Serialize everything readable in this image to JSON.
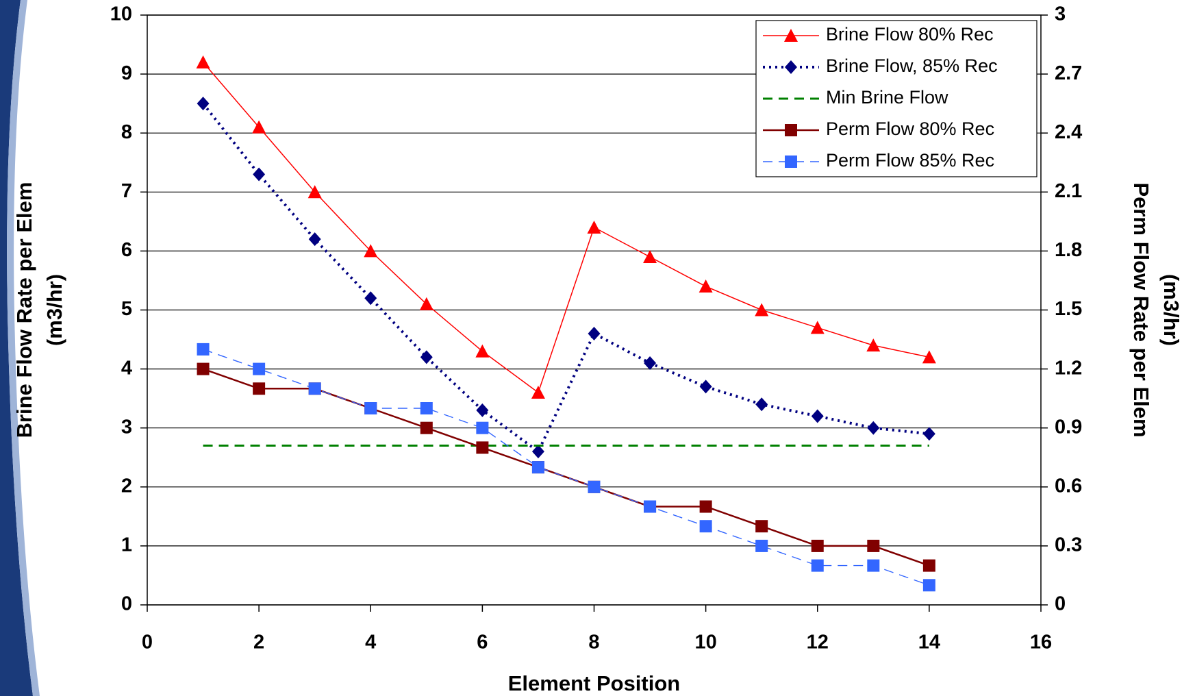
{
  "chart_data": {
    "type": "line",
    "x": [
      1,
      2,
      3,
      4,
      5,
      6,
      7,
      8,
      9,
      10,
      11,
      12,
      13,
      14
    ],
    "xlabel": "Element Position",
    "ylabel": [
      "Brine Flow Rate per Elem",
      "(m3/hr)"
    ],
    "y2label": [
      "Perm Flow Rate per Elem",
      "(m3/hr)"
    ],
    "xlim": [
      0,
      16
    ],
    "xticks": [
      0,
      2,
      4,
      6,
      8,
      10,
      12,
      14,
      16
    ],
    "ylim": [
      0,
      10
    ],
    "yticks": [
      0,
      1,
      2,
      3,
      4,
      5,
      6,
      7,
      8,
      9,
      10
    ],
    "y2lim": [
      0,
      3
    ],
    "y2ticks": [
      0,
      0.3,
      0.6,
      0.9,
      1.2,
      1.5,
      1.8,
      2.1,
      2.4,
      2.7,
      3
    ],
    "grid": true,
    "legend": "upper right",
    "series": [
      {
        "name": "Brine Flow 80% Rec",
        "color": "#ff0000",
        "line_style": "solid",
        "marker": "triangle",
        "values": [
          9.2,
          8.1,
          7.0,
          6.0,
          5.1,
          4.3,
          3.6,
          6.4,
          5.9,
          5.4,
          5.0,
          4.7,
          4.4,
          4.2
        ]
      },
      {
        "name": "Brine Flow, 85% Rec",
        "color": "#000080",
        "line_style": "dotted",
        "marker": "diamond",
        "values": [
          8.5,
          7.3,
          6.2,
          5.2,
          4.2,
          3.3,
          2.6,
          4.6,
          4.1,
          3.7,
          3.4,
          3.2,
          3.0,
          2.9
        ]
      },
      {
        "name": "Min Brine Flow",
        "color": "#008000",
        "line_style": "dashed",
        "marker": "none",
        "values": [
          2.7,
          2.7,
          2.7,
          2.7,
          2.7,
          2.7,
          2.7,
          2.7,
          2.7,
          2.7,
          2.7,
          2.7,
          2.7,
          2.7
        ]
      },
      {
        "name": "Perm Flow 80% Rec",
        "color": "#800000",
        "line_style": "solid",
        "marker": "square",
        "axis": "y2",
        "values": [
          1.2,
          1.1,
          1.1,
          1.0,
          0.9,
          0.8,
          0.7,
          0.6,
          0.5,
          0.5,
          0.4,
          0.3,
          0.3,
          0.2
        ]
      },
      {
        "name": "Perm Flow 85% Rec",
        "color": "#3366ff",
        "line_style": "dashed",
        "marker": "square",
        "axis": "y2",
        "values": [
          1.3,
          1.2,
          1.1,
          1.0,
          1.0,
          0.9,
          0.7,
          0.6,
          0.5,
          0.4,
          0.3,
          0.2,
          0.2,
          0.1
        ]
      }
    ]
  }
}
